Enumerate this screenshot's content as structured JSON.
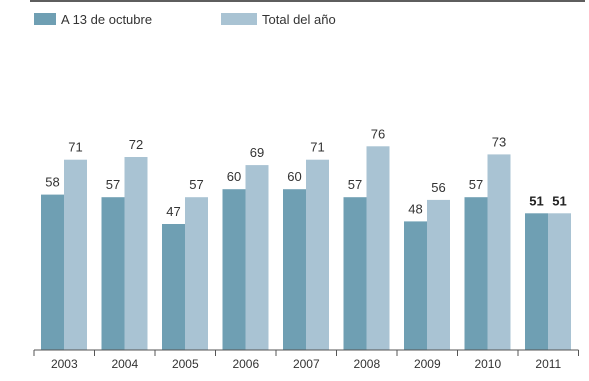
{
  "chart_data": {
    "type": "bar",
    "categories": [
      "2003",
      "2004",
      "2005",
      "2006",
      "2007",
      "2008",
      "2009",
      "2010",
      "2011"
    ],
    "series": [
      {
        "name": "A 13 de octubre",
        "values": [
          58,
          57,
          47,
          60,
          60,
          57,
          48,
          57,
          51
        ],
        "color": "#6f9fb3"
      },
      {
        "name": "Total del año",
        "values": [
          71,
          72,
          57,
          69,
          71,
          76,
          56,
          73,
          51
        ],
        "color": "#a9c3d3"
      }
    ],
    "bold_categories": [
      "2011"
    ],
    "ylim": [
      0,
      100
    ],
    "grid": false,
    "legend_position": "top-left",
    "axis_color": "#555555"
  }
}
